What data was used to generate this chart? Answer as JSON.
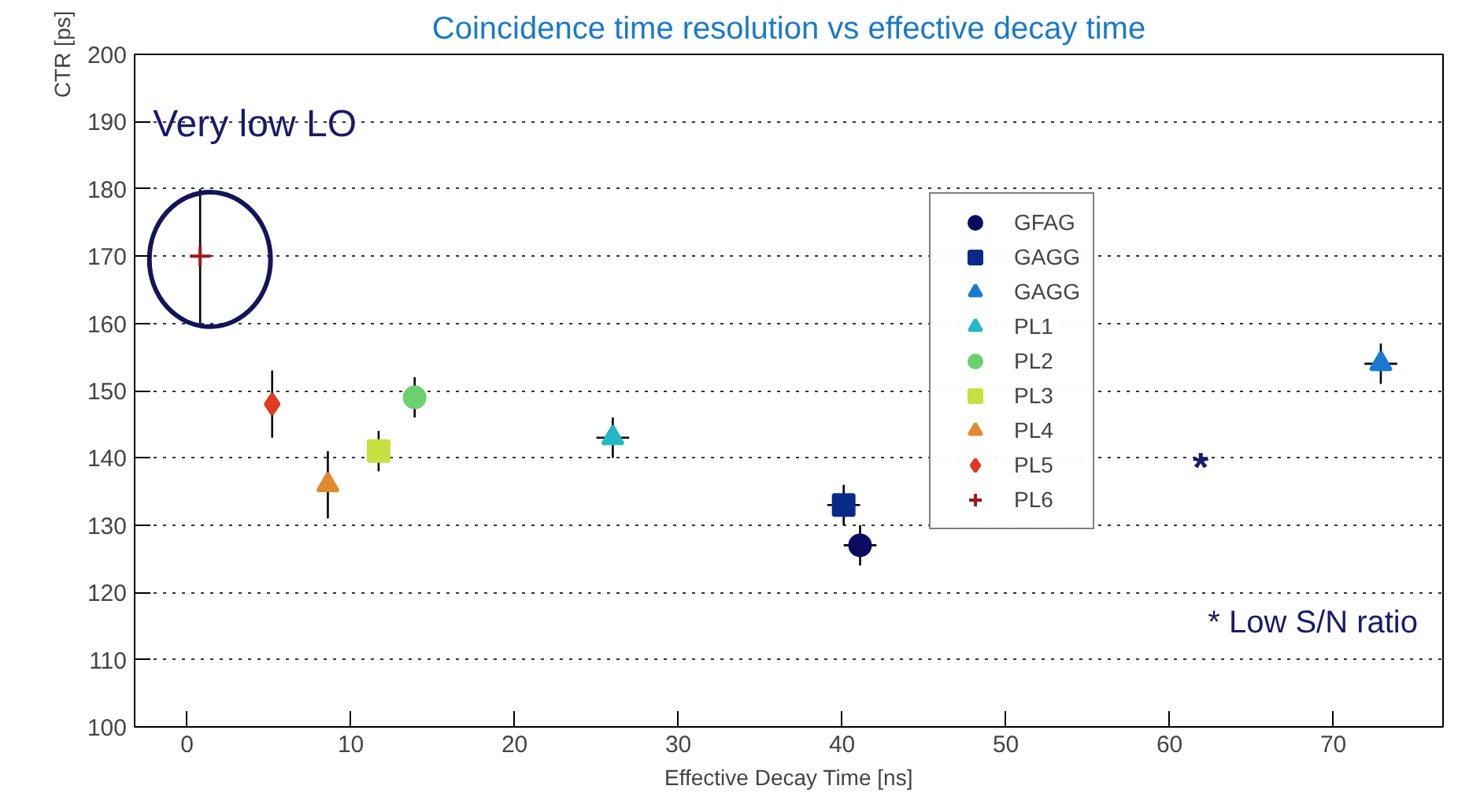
{
  "chart_data": {
    "type": "scatter",
    "title": "Coincidence time resolution vs effective decay time",
    "xlabel": "Effective Decay Time [ns]",
    "ylabel": "CTR [ps]",
    "xlim": [
      -3.2,
      76.7
    ],
    "ylim": [
      100,
      200
    ],
    "xticks": [
      0,
      10,
      20,
      30,
      40,
      50,
      60,
      70
    ],
    "yticks": [
      100,
      110,
      120,
      130,
      140,
      150,
      160,
      170,
      180,
      190,
      200
    ],
    "grid": "y",
    "legend": "top right",
    "series": [
      {
        "name": "GFAG",
        "color": "#0a0a5e",
        "marker": "circle",
        "x": [
          41.1
        ],
        "values": [
          127
        ],
        "errors": [
          3
        ],
        "xerrors": [
          1
        ]
      },
      {
        "name": "GAGG",
        "color": "#0a2a8a",
        "marker": "square",
        "x": [
          40.1
        ],
        "values": [
          133
        ],
        "errors": [
          3
        ],
        "xerrors": [
          1
        ]
      },
      {
        "name": "GAGG",
        "color": "#1a7ad0",
        "marker": "triangle",
        "x": [
          72.9
        ],
        "values": [
          154
        ],
        "errors": [
          3
        ],
        "xerrors": [
          1
        ]
      },
      {
        "name": "PL1",
        "color": "#22b8c8",
        "marker": "triangle",
        "x": [
          26.0
        ],
        "values": [
          143
        ],
        "errors": [
          3
        ],
        "xerrors": [
          1
        ]
      },
      {
        "name": "PL2",
        "color": "#6cd06c",
        "marker": "circle",
        "x": [
          13.9
        ],
        "values": [
          149
        ],
        "errors": [
          3
        ],
        "xerrors": [
          null
        ]
      },
      {
        "name": "PL3",
        "color": "#c8e040",
        "marker": "square",
        "x": [
          11.7
        ],
        "values": [
          141
        ],
        "errors": [
          3
        ],
        "xerrors": [
          null
        ]
      },
      {
        "name": "PL4",
        "color": "#e08a30",
        "marker": "triangle",
        "x": [
          8.6
        ],
        "values": [
          136
        ],
        "errors": [
          5
        ],
        "xerrors": [
          null
        ]
      },
      {
        "name": "PL5",
        "color": "#e03a20",
        "marker": "diamond",
        "x": [
          5.2
        ],
        "values": [
          148
        ],
        "errors": [
          5
        ],
        "xerrors": [
          null
        ]
      },
      {
        "name": "PL6",
        "color": "#a01818",
        "marker": "cross",
        "x": [
          0.8
        ],
        "values": [
          170
        ],
        "errors": [
          10
        ],
        "xerrors": [
          null
        ]
      }
    ],
    "annotations": [
      {
        "text": "Very low LO",
        "x": 0.8,
        "y": 170
      },
      "*",
      "* Low S/N ratio"
    ]
  }
}
